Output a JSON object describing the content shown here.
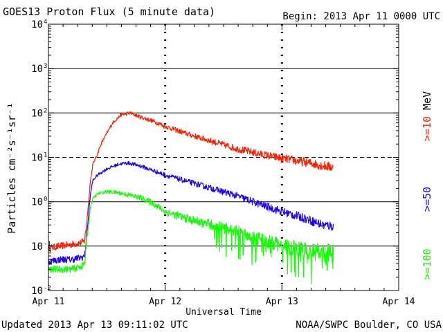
{
  "header": {
    "title": "GOES13 Proton Flux (5 minute data)",
    "begin": "Begin: 2013 Apr 11 0000 UTC"
  },
  "footer": {
    "updated": "Updated 2013 Apr 13 09:11:02 UTC",
    "source": "NOAA/SWPC Boulder, CO USA"
  },
  "chart_data": {
    "type": "line",
    "title": "GOES13 Proton Flux (5 minute data)",
    "xlabel": "Universal Time",
    "ylabel": "Particles cm⁻²s⁻¹sr⁻¹",
    "y_scale": "log",
    "ylim": [
      0.01,
      10000
    ],
    "xlim_days": [
      0,
      3
    ],
    "x_ticks": [
      "Apr 11",
      "Apr 12",
      "Apr 13",
      "Apr 14"
    ],
    "y_ticks": [
      {
        "base": "10",
        "exp": "4"
      },
      {
        "base": "10",
        "exp": "3"
      },
      {
        "base": "10",
        "exp": "2"
      },
      {
        "base": "10",
        "exp": "1"
      },
      {
        "base": "10",
        "exp": "0"
      },
      {
        "base": "10",
        "exp": "-1"
      },
      {
        "base": "10",
        "exp": "-2"
      }
    ],
    "warning_threshold": 10,
    "series": [
      {
        "name": ">=10 MeV",
        "label": ">=10",
        "unit": "MeV",
        "color": "#ff2000",
        "points": [
          [
            0.0,
            0.09
          ],
          [
            0.1,
            0.1
          ],
          [
            0.2,
            0.11
          ],
          [
            0.28,
            0.12
          ],
          [
            0.31,
            0.13
          ],
          [
            0.33,
            0.4
          ],
          [
            0.36,
            3.0
          ],
          [
            0.38,
            7.0
          ],
          [
            0.42,
            12
          ],
          [
            0.45,
            20
          ],
          [
            0.5,
            35
          ],
          [
            0.55,
            60
          ],
          [
            0.62,
            90
          ],
          [
            0.7,
            100
          ],
          [
            0.78,
            82
          ],
          [
            0.9,
            65
          ],
          [
            1.0,
            50
          ],
          [
            1.2,
            33
          ],
          [
            1.4,
            23
          ],
          [
            1.6,
            16
          ],
          [
            1.8,
            12
          ],
          [
            2.0,
            9.5
          ],
          [
            2.2,
            7.8
          ],
          [
            2.35,
            6.5
          ],
          [
            2.44,
            6.0
          ]
        ]
      },
      {
        "name": ">=50 MeV",
        "label": ">=50",
        "unit": "",
        "color": "#1e00ff",
        "points": [
          [
            0.0,
            0.045
          ],
          [
            0.1,
            0.05
          ],
          [
            0.2,
            0.05
          ],
          [
            0.28,
            0.055
          ],
          [
            0.31,
            0.06
          ],
          [
            0.33,
            0.2
          ],
          [
            0.36,
            1.5
          ],
          [
            0.38,
            3.0
          ],
          [
            0.42,
            4.0
          ],
          [
            0.5,
            5.5
          ],
          [
            0.6,
            7.0
          ],
          [
            0.68,
            7.5
          ],
          [
            0.78,
            6.5
          ],
          [
            0.9,
            5.0
          ],
          [
            1.0,
            4.0
          ],
          [
            1.2,
            2.8
          ],
          [
            1.4,
            2.0
          ],
          [
            1.6,
            1.4
          ],
          [
            1.8,
            0.9
          ],
          [
            2.0,
            0.6
          ],
          [
            2.2,
            0.42
          ],
          [
            2.35,
            0.3
          ],
          [
            2.44,
            0.28
          ]
        ]
      },
      {
        "name": ">=100 MeV",
        "label": ">=100",
        "unit": "",
        "color": "#12ff00",
        "points": [
          [
            0.0,
            0.03
          ],
          [
            0.1,
            0.03
          ],
          [
            0.2,
            0.03
          ],
          [
            0.28,
            0.035
          ],
          [
            0.31,
            0.04
          ],
          [
            0.33,
            0.15
          ],
          [
            0.36,
            0.8
          ],
          [
            0.38,
            1.2
          ],
          [
            0.42,
            1.5
          ],
          [
            0.5,
            1.7
          ],
          [
            0.6,
            1.6
          ],
          [
            0.7,
            1.4
          ],
          [
            0.8,
            1.2
          ],
          [
            0.9,
            0.9
          ],
          [
            1.0,
            0.6
          ],
          [
            1.2,
            0.4
          ],
          [
            1.4,
            0.3
          ],
          [
            1.6,
            0.22
          ],
          [
            1.8,
            0.15
          ],
          [
            2.0,
            0.1
          ],
          [
            2.2,
            0.08
          ],
          [
            2.35,
            0.07
          ],
          [
            2.44,
            0.07
          ]
        ]
      }
    ]
  }
}
